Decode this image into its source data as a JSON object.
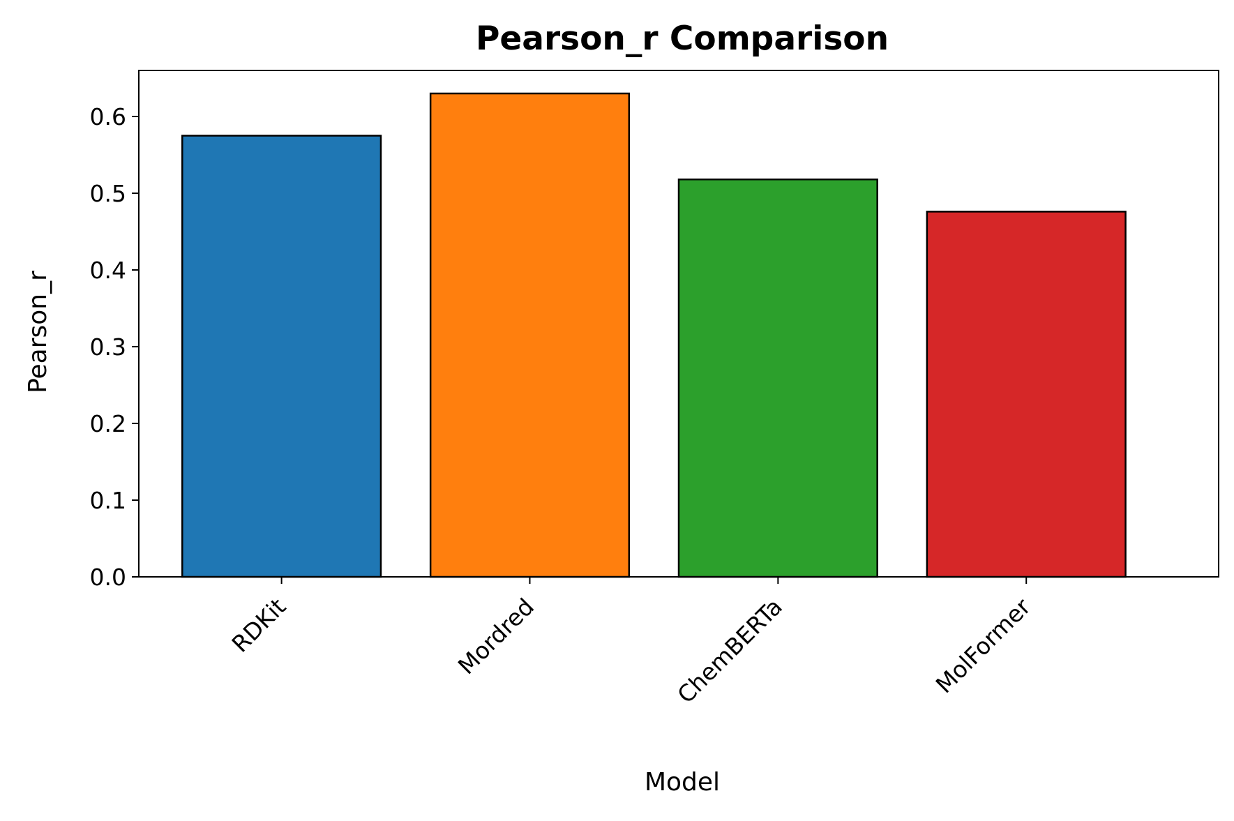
{
  "chart_data": {
    "type": "bar",
    "title": "Pearson_r Comparison",
    "xlabel": "Model",
    "ylabel": "Pearson_r",
    "categories": [
      "RDKit",
      "Mordred",
      "ChemBERTa",
      "MolFormer"
    ],
    "values": [
      0.575,
      0.63,
      0.518,
      0.476
    ],
    "colors": [
      "#1f77b4",
      "#ff7f0e",
      "#2ca02c",
      "#d62728"
    ],
    "edge_color": "#000000",
    "ylim": [
      0,
      0.66
    ],
    "yticks": [
      {
        "value": 0.0,
        "label": "0.0"
      },
      {
        "value": 0.1,
        "label": "0.1"
      },
      {
        "value": 0.2,
        "label": "0.2"
      },
      {
        "value": 0.3,
        "label": "0.3"
      },
      {
        "value": 0.4,
        "label": "0.4"
      },
      {
        "value": 0.5,
        "label": "0.5"
      },
      {
        "value": 0.6,
        "label": "0.6"
      }
    ],
    "grid": false,
    "legend": "none",
    "xtick_rotation": "45"
  }
}
